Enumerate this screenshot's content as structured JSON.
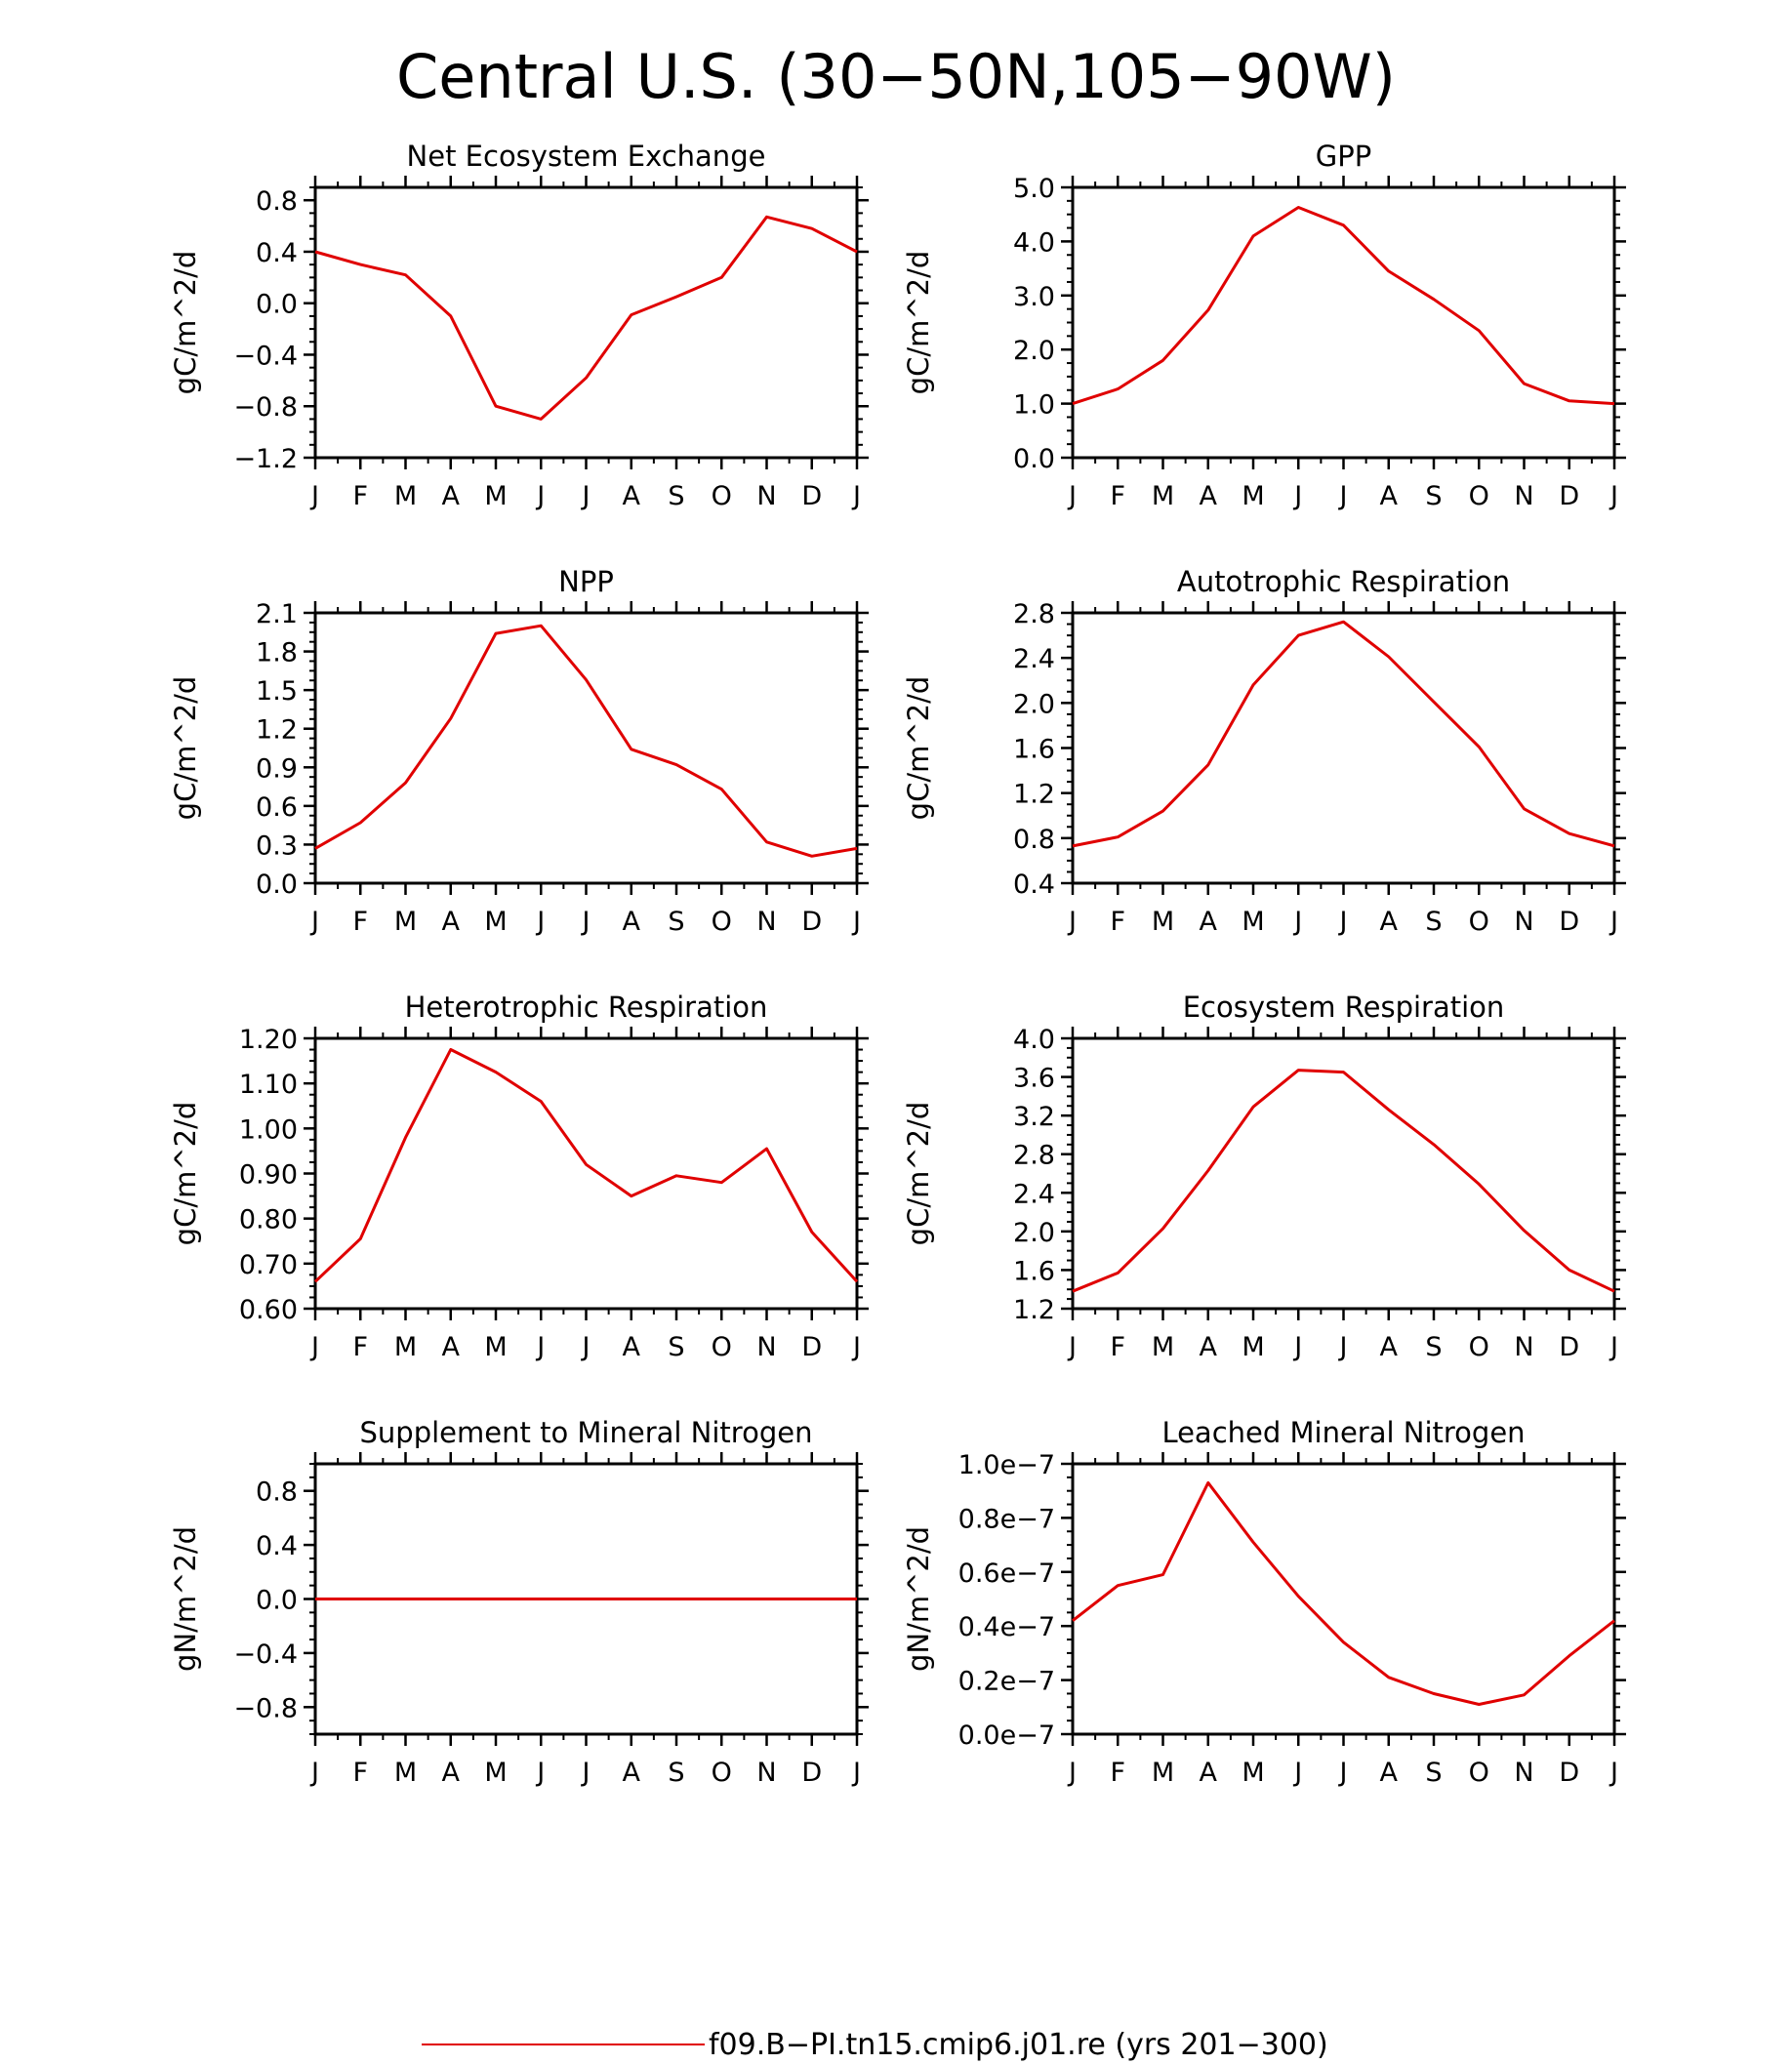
{
  "title": "Central U.S. (30−50N,105−90W)",
  "legend": {
    "label": "f09.B−PI.tn15.cmip6.j01.re (yrs 201−300)",
    "color": "#e00000"
  },
  "chart_data": [
    {
      "type": "line",
      "title": "Net Ecosystem Exchange",
      "ylabel": "gC/m^2/d",
      "categories": [
        "J",
        "F",
        "M",
        "A",
        "M",
        "J",
        "J",
        "A",
        "S",
        "O",
        "N",
        "D",
        "J"
      ],
      "ylim": [
        -1.2,
        0.9
      ],
      "yticks": [
        -1.2,
        -0.8,
        -0.4,
        0.0,
        0.4,
        0.8
      ],
      "ytick_labels": [
        "−1.2",
        "−0.8",
        "−0.4",
        "0.0",
        "0.4",
        "0.8"
      ],
      "series": [
        {
          "values": [
            0.4,
            0.3,
            0.22,
            -0.1,
            -0.8,
            -0.9,
            -0.58,
            -0.09,
            0.05,
            0.2,
            0.67,
            0.58,
            0.4
          ]
        }
      ]
    },
    {
      "type": "line",
      "title": "GPP",
      "ylabel": "gC/m^2/d",
      "categories": [
        "J",
        "F",
        "M",
        "A",
        "M",
        "J",
        "J",
        "A",
        "S",
        "O",
        "N",
        "D",
        "J"
      ],
      "ylim": [
        0.0,
        5.0
      ],
      "yticks": [
        0.0,
        1.0,
        2.0,
        3.0,
        4.0,
        5.0
      ],
      "ytick_labels": [
        "0.0",
        "1.0",
        "2.0",
        "3.0",
        "4.0",
        "5.0"
      ],
      "series": [
        {
          "values": [
            1.0,
            1.27,
            1.8,
            2.73,
            4.1,
            4.63,
            4.3,
            3.45,
            2.93,
            2.35,
            1.37,
            1.05,
            1.0
          ]
        }
      ]
    },
    {
      "type": "line",
      "title": "NPP",
      "ylabel": "gC/m^2/d",
      "categories": [
        "J",
        "F",
        "M",
        "A",
        "M",
        "J",
        "J",
        "A",
        "S",
        "O",
        "N",
        "D",
        "J"
      ],
      "ylim": [
        0.0,
        2.1
      ],
      "yticks": [
        0.0,
        0.3,
        0.6,
        0.9,
        1.2,
        1.5,
        1.8,
        2.1
      ],
      "ytick_labels": [
        "0.0",
        "0.3",
        "0.6",
        "0.9",
        "1.2",
        "1.5",
        "1.8",
        "2.1"
      ],
      "series": [
        {
          "values": [
            0.27,
            0.47,
            0.78,
            1.28,
            1.94,
            2.0,
            1.58,
            1.04,
            0.92,
            0.73,
            0.32,
            0.21,
            0.27
          ]
        }
      ]
    },
    {
      "type": "line",
      "title": "Autotrophic Respiration",
      "ylabel": "gC/m^2/d",
      "categories": [
        "J",
        "F",
        "M",
        "A",
        "M",
        "J",
        "J",
        "A",
        "S",
        "O",
        "N",
        "D",
        "J"
      ],
      "ylim": [
        0.4,
        2.8
      ],
      "yticks": [
        0.4,
        0.8,
        1.2,
        1.6,
        2.0,
        2.4,
        2.8
      ],
      "ytick_labels": [
        "0.4",
        "0.8",
        "1.2",
        "1.6",
        "2.0",
        "2.4",
        "2.8"
      ],
      "series": [
        {
          "values": [
            0.73,
            0.81,
            1.04,
            1.45,
            2.16,
            2.6,
            2.72,
            2.41,
            2.01,
            1.61,
            1.06,
            0.84,
            0.73
          ]
        }
      ]
    },
    {
      "type": "line",
      "title": "Heterotrophic Respiration",
      "ylabel": "gC/m^2/d",
      "categories": [
        "J",
        "F",
        "M",
        "A",
        "M",
        "J",
        "J",
        "A",
        "S",
        "O",
        "N",
        "D",
        "J"
      ],
      "ylim": [
        0.6,
        1.2
      ],
      "yticks": [
        0.6,
        0.7,
        0.8,
        0.9,
        1.0,
        1.1,
        1.2
      ],
      "ytick_labels": [
        "0.60",
        "0.70",
        "0.80",
        "0.90",
        "1.00",
        "1.10",
        "1.20"
      ],
      "series": [
        {
          "values": [
            0.66,
            0.755,
            0.98,
            1.175,
            1.125,
            1.06,
            0.92,
            0.85,
            0.895,
            0.88,
            0.955,
            0.77,
            0.66
          ]
        }
      ]
    },
    {
      "type": "line",
      "title": "Ecosystem Respiration",
      "ylabel": "gC/m^2/d",
      "categories": [
        "J",
        "F",
        "M",
        "A",
        "M",
        "J",
        "J",
        "A",
        "S",
        "O",
        "N",
        "D",
        "J"
      ],
      "ylim": [
        1.2,
        4.0
      ],
      "yticks": [
        1.2,
        1.6,
        2.0,
        2.4,
        2.8,
        3.2,
        3.6,
        4.0
      ],
      "ytick_labels": [
        "1.2",
        "1.6",
        "2.0",
        "2.4",
        "2.8",
        "3.2",
        "3.6",
        "4.0"
      ],
      "series": [
        {
          "values": [
            1.38,
            1.57,
            2.03,
            2.63,
            3.29,
            3.67,
            3.65,
            3.26,
            2.9,
            2.49,
            2.01,
            1.6,
            1.38
          ]
        }
      ]
    },
    {
      "type": "line",
      "title": "Supplement to Mineral Nitrogen",
      "ylabel": "gN/m^2/d",
      "categories": [
        "J",
        "F",
        "M",
        "A",
        "M",
        "J",
        "J",
        "A",
        "S",
        "O",
        "N",
        "D",
        "J"
      ],
      "ylim": [
        -1.0,
        1.0
      ],
      "yticks": [
        -0.8,
        -0.4,
        0.0,
        0.4,
        0.8
      ],
      "ytick_labels": [
        "−0.8",
        "−0.4",
        "0.0",
        "0.4",
        "0.8"
      ],
      "series": [
        {
          "values": [
            0,
            0,
            0,
            0,
            0,
            0,
            0,
            0,
            0,
            0,
            0,
            0,
            0
          ]
        }
      ]
    },
    {
      "type": "line",
      "title": "Leached Mineral Nitrogen",
      "ylabel": "gN/m^2/d",
      "categories": [
        "J",
        "F",
        "M",
        "A",
        "M",
        "J",
        "J",
        "A",
        "S",
        "O",
        "N",
        "D",
        "J"
      ],
      "ylim": [
        0.0,
        1e-07
      ],
      "yticks": [
        0.0,
        2e-08,
        4e-08,
        6e-08,
        8e-08,
        1e-07
      ],
      "ytick_labels": [
        "0.0e−7",
        "0.2e−7",
        "0.4e−7",
        "0.6e−7",
        "0.8e−7",
        "1.0e−7"
      ],
      "series": [
        {
          "values": [
            4.2e-08,
            5.5e-08,
            5.9e-08,
            9.3e-08,
            7.1e-08,
            5.1e-08,
            3.4e-08,
            2.1e-08,
            1.5e-08,
            1.1e-08,
            1.45e-08,
            2.9e-08,
            4.2e-08
          ]
        }
      ]
    }
  ]
}
